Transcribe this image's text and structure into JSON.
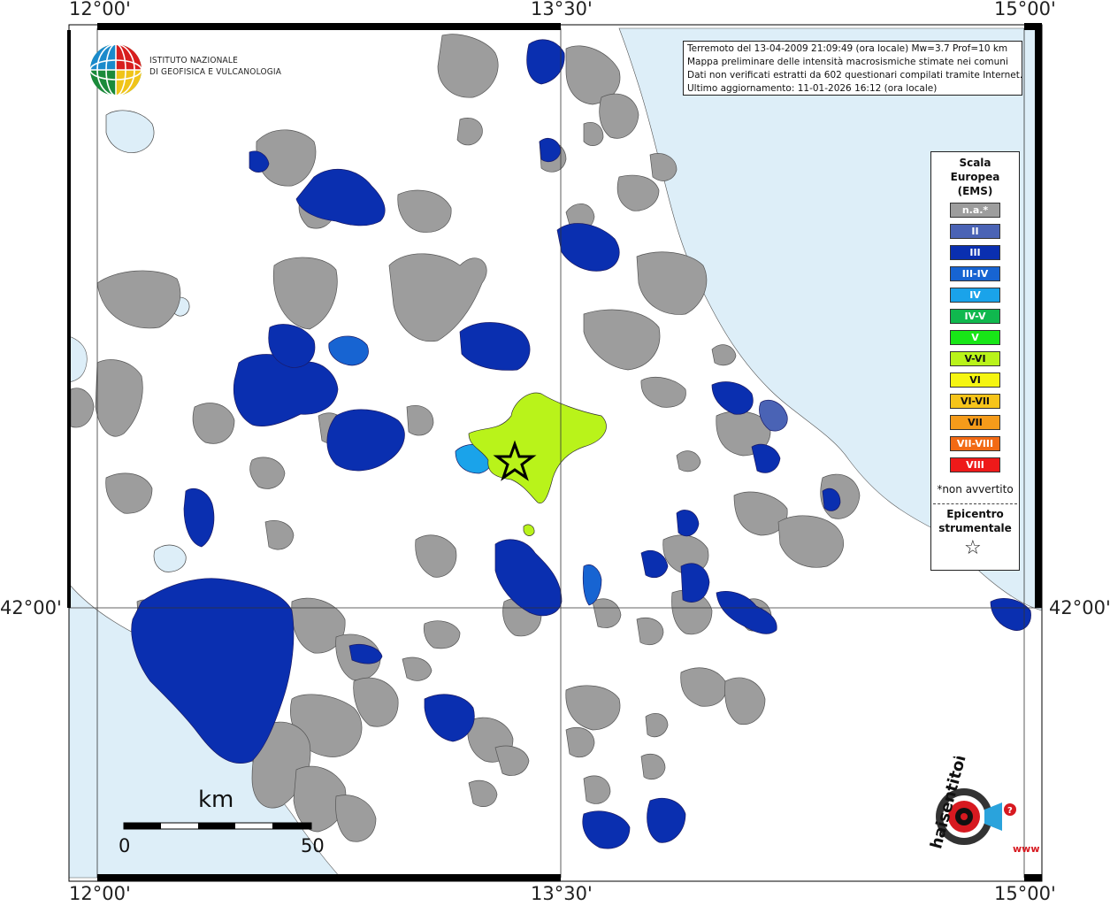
{
  "header": {
    "line1": "Terremoto del 13-04-2009 21:09:49 (ora locale) Mw=3.7 Prof=10 km",
    "line2": "Mappa preliminare delle intensità macrosismiche stimate nei comuni",
    "line3": "Dati non verificati estratti da 602 questionari compilati tramite Internet.",
    "line4": "Ultimo aggiornamento: 11-01-2026 16:12 (ora locale)"
  },
  "axes": {
    "top_left": "12°00'",
    "top_mid": "13°30'",
    "top_right": "15°00'",
    "bottom_left": "12°00'",
    "bottom_mid": "13°30'",
    "bottom_right": "15°00'",
    "left_lat": "42°00'",
    "right_lat": "42°00'"
  },
  "legend": {
    "title1": "Scala",
    "title2": "Europea",
    "title3": "(EMS)",
    "items": [
      {
        "label": "n.a.*",
        "color": "#9d9d9d"
      },
      {
        "label": "II",
        "color": "#4a63b5"
      },
      {
        "label": "III",
        "color": "#0a2fb0"
      },
      {
        "label": "III-IV",
        "color": "#1764d2"
      },
      {
        "label": "IV",
        "color": "#1aa3ea"
      },
      {
        "label": "IV-V",
        "color": "#10b84e"
      },
      {
        "label": "V",
        "color": "#18e617"
      },
      {
        "label": "V-VI",
        "color": "#b9f31a"
      },
      {
        "label": "VI",
        "color": "#f5f511"
      },
      {
        "label": "VI-VII",
        "color": "#f6c41a"
      },
      {
        "label": "VII",
        "color": "#f59b1a"
      },
      {
        "label": "VII-VIII",
        "color": "#f26a14"
      },
      {
        "label": "VIII",
        "color": "#ee1a1a"
      }
    ],
    "note": "*non avvertito",
    "epicenter1": "Epicentro",
    "epicenter2": "strumentale",
    "epicenter_symbol": "☆"
  },
  "logo_ingv": {
    "line1": "ISTITUTO NAZIONALE",
    "line2": "DI GEOFISICA E VULCANOLOGIA"
  },
  "scale_bar": {
    "unit": "km",
    "start": "0",
    "end": "50"
  },
  "logo_hs": {
    "text": "haisentitoilterremoto.it",
    "www": "www."
  },
  "colors": {
    "sea": "#ddeef8",
    "border": "#000000",
    "grid": "#333333",
    "epicenter_marker": "star"
  }
}
